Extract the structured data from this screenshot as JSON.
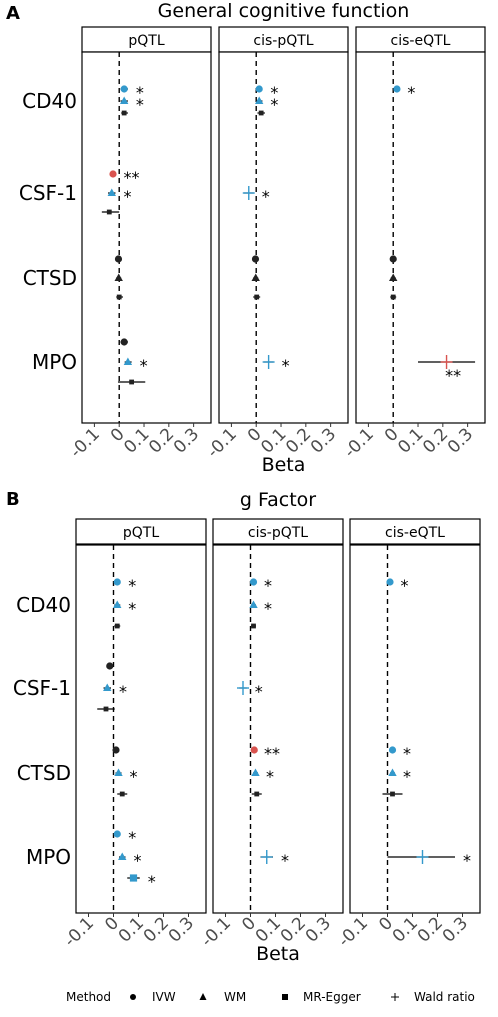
{
  "chart_data": [
    {
      "panel_letter": "A",
      "title": "General cognitive function",
      "type": "forest",
      "xlabel": "Beta",
      "xlim": [
        -0.15,
        0.37
      ],
      "xticks": [
        "-0.1",
        "0",
        "0.1",
        "0.2",
        "0.3"
      ],
      "row_labels": [
        "CD40",
        "CSF-1",
        "CTSD",
        "MPO"
      ],
      "facets": [
        {
          "name": "pQTL",
          "points": [
            {
              "protein": "CD40",
              "method": "IVW",
              "beta": 0.02,
              "lo": 0.005,
              "hi": 0.035,
              "star": "*",
              "color": "#3399cc"
            },
            {
              "protein": "CD40",
              "method": "WM",
              "beta": 0.02,
              "lo": 0.005,
              "hi": 0.035,
              "star": "*",
              "color": "#3399cc"
            },
            {
              "protein": "CD40",
              "method": "MR-Egger",
              "beta": 0.02,
              "lo": 0.008,
              "hi": 0.035,
              "star": "",
              "color": "#222222"
            },
            {
              "protein": "CSF-1",
              "method": "IVW",
              "beta": -0.025,
              "lo": -0.035,
              "hi": -0.015,
              "star": "**",
              "color": "#d9534f"
            },
            {
              "protein": "CSF-1",
              "method": "WM",
              "beta": -0.03,
              "lo": -0.045,
              "hi": -0.015,
              "star": "*",
              "color": "#3399cc"
            },
            {
              "protein": "CSF-1",
              "method": "MR-Egger",
              "beta": -0.04,
              "lo": -0.07,
              "hi": 0.0,
              "star": "",
              "color": "#222222"
            },
            {
              "protein": "CTSD",
              "method": "IVW",
              "beta": -0.003,
              "lo": -0.012,
              "hi": 0.006,
              "star": "",
              "color": "#222222"
            },
            {
              "protein": "CTSD",
              "method": "WM",
              "beta": -0.002,
              "lo": -0.012,
              "hi": 0.008,
              "star": "",
              "color": "#222222"
            },
            {
              "protein": "CTSD",
              "method": "MR-Egger",
              "beta": 0.0,
              "lo": -0.012,
              "hi": 0.015,
              "star": "",
              "color": "#222222"
            },
            {
              "protein": "MPO",
              "method": "IVW",
              "beta": 0.02,
              "lo": 0.005,
              "hi": 0.035,
              "star": "",
              "color": "#222222"
            },
            {
              "protein": "MPO",
              "method": "WM",
              "beta": 0.035,
              "lo": 0.022,
              "hi": 0.05,
              "star": "*",
              "color": "#3399cc"
            },
            {
              "protein": "MPO",
              "method": "MR-Egger",
              "beta": 0.05,
              "lo": -0.005,
              "hi": 0.105,
              "star": "",
              "color": "#222222"
            }
          ]
        },
        {
          "name": "cis-pQTL",
          "points": [
            {
              "protein": "CD40",
              "method": "IVW",
              "beta": 0.012,
              "lo": 0.0,
              "hi": 0.025,
              "star": "*",
              "color": "#3399cc"
            },
            {
              "protein": "CD40",
              "method": "WM",
              "beta": 0.012,
              "lo": 0.0,
              "hi": 0.025,
              "star": "*",
              "color": "#3399cc"
            },
            {
              "protein": "CD40",
              "method": "MR-Egger",
              "beta": 0.02,
              "lo": 0.005,
              "hi": 0.035,
              "star": "",
              "color": "#222222"
            },
            {
              "protein": "CSF-1",
              "method": "Wald ratio",
              "beta": -0.03,
              "lo": -0.05,
              "hi": -0.01,
              "star": "*",
              "color": "#3399cc"
            },
            {
              "protein": "CTSD",
              "method": "IVW",
              "beta": -0.003,
              "lo": -0.012,
              "hi": 0.006,
              "star": "",
              "color": "#222222"
            },
            {
              "protein": "CTSD",
              "method": "WM",
              "beta": -0.002,
              "lo": -0.012,
              "hi": 0.008,
              "star": "",
              "color": "#222222"
            },
            {
              "protein": "CTSD",
              "method": "MR-Egger",
              "beta": 0.002,
              "lo": -0.012,
              "hi": 0.016,
              "star": "",
              "color": "#222222"
            },
            {
              "protein": "MPO",
              "method": "Wald ratio",
              "beta": 0.05,
              "lo": 0.03,
              "hi": 0.07,
              "star": "*",
              "color": "#3399cc"
            }
          ]
        },
        {
          "name": "cis-eQTL",
          "points": [
            {
              "protein": "CD40",
              "method": "IVW",
              "beta": 0.015,
              "lo": 0.005,
              "hi": 0.025,
              "star": "*",
              "color": "#3399cc"
            },
            {
              "protein": "CTSD",
              "method": "IVW",
              "beta": 0.0,
              "lo": -0.01,
              "hi": 0.01,
              "star": "",
              "color": "#222222"
            },
            {
              "protein": "CTSD",
              "method": "WM",
              "beta": 0.0,
              "lo": -0.01,
              "hi": 0.01,
              "star": "",
              "color": "#222222"
            },
            {
              "protein": "CTSD",
              "method": "MR-Egger",
              "beta": 0.0,
              "lo": -0.012,
              "hi": 0.012,
              "star": "",
              "color": "#222222"
            },
            {
              "protein": "MPO",
              "method": "Wald ratio",
              "beta": 0.215,
              "lo": 0.1,
              "hi": 0.33,
              "star": "**",
              "color": "#d9534f"
            }
          ]
        }
      ]
    },
    {
      "panel_letter": "B",
      "title": "g Factor",
      "type": "forest",
      "xlabel": "Beta",
      "xlim": [
        -0.15,
        0.37
      ],
      "xticks": [
        "-0.1",
        "0",
        "0.1",
        "0.2",
        "0.3"
      ],
      "row_labels": [
        "CD40",
        "CSF-1",
        "CTSD",
        "MPO"
      ],
      "facets": [
        {
          "name": "pQTL",
          "points": [
            {
              "protein": "CD40",
              "method": "IVW",
              "beta": 0.015,
              "lo": 0.003,
              "hi": 0.027,
              "star": "*",
              "color": "#3399cc"
            },
            {
              "protein": "CD40",
              "method": "WM",
              "beta": 0.015,
              "lo": 0.003,
              "hi": 0.027,
              "star": "*",
              "color": "#3399cc"
            },
            {
              "protein": "CD40",
              "method": "MR-Egger",
              "beta": 0.015,
              "lo": 0.003,
              "hi": 0.027,
              "star": "",
              "color": "#222222"
            },
            {
              "protein": "CSF-1",
              "method": "IVW",
              "beta": -0.015,
              "lo": -0.025,
              "hi": -0.005,
              "star": "",
              "color": "#222222"
            },
            {
              "protein": "CSF-1",
              "method": "WM",
              "beta": -0.025,
              "lo": -0.04,
              "hi": -0.01,
              "star": "*",
              "color": "#3399cc"
            },
            {
              "protein": "CSF-1",
              "method": "MR-Egger",
              "beta": -0.03,
              "lo": -0.065,
              "hi": 0.005,
              "star": "",
              "color": "#222222"
            },
            {
              "protein": "CTSD",
              "method": "IVW",
              "beta": 0.01,
              "lo": 0.0,
              "hi": 0.02,
              "star": "",
              "color": "#222222"
            },
            {
              "protein": "CTSD",
              "method": "WM",
              "beta": 0.02,
              "lo": 0.008,
              "hi": 0.032,
              "star": "*",
              "color": "#3399cc"
            },
            {
              "protein": "CTSD",
              "method": "MR-Egger",
              "beta": 0.035,
              "lo": 0.015,
              "hi": 0.055,
              "star": "",
              "color": "#222222"
            },
            {
              "protein": "MPO",
              "method": "IVW",
              "beta": 0.015,
              "lo": 0.003,
              "hi": 0.027,
              "star": "*",
              "color": "#3399cc"
            },
            {
              "protein": "MPO",
              "method": "WM",
              "beta": 0.035,
              "lo": 0.022,
              "hi": 0.048,
              "star": "*",
              "color": "#3399cc"
            },
            {
              "protein": "MPO",
              "method": "MR-Egger",
              "beta": 0.08,
              "lo": 0.055,
              "hi": 0.105,
              "star": "*",
              "color": "#3399cc"
            }
          ]
        },
        {
          "name": "cis-pQTL",
          "points": [
            {
              "protein": "CD40",
              "method": "IVW",
              "beta": 0.012,
              "lo": 0.002,
              "hi": 0.022,
              "star": "*",
              "color": "#3399cc"
            },
            {
              "protein": "CD40",
              "method": "WM",
              "beta": 0.012,
              "lo": 0.002,
              "hi": 0.022,
              "star": "*",
              "color": "#3399cc"
            },
            {
              "protein": "CD40",
              "method": "MR-Egger",
              "beta": 0.012,
              "lo": 0.002,
              "hi": 0.022,
              "star": "",
              "color": "#222222"
            },
            {
              "protein": "CSF-1",
              "method": "Wald ratio",
              "beta": -0.03,
              "lo": -0.045,
              "hi": -0.015,
              "star": "*",
              "color": "#3399cc"
            },
            {
              "protein": "CTSD",
              "method": "IVW",
              "beta": 0.015,
              "lo": 0.008,
              "hi": 0.022,
              "star": "**",
              "color": "#d9534f"
            },
            {
              "protein": "CTSD",
              "method": "WM",
              "beta": 0.02,
              "lo": 0.01,
              "hi": 0.03,
              "star": "*",
              "color": "#3399cc"
            },
            {
              "protein": "CTSD",
              "method": "MR-Egger",
              "beta": 0.025,
              "lo": 0.005,
              "hi": 0.045,
              "star": "",
              "color": "#222222"
            },
            {
              "protein": "MPO",
              "method": "Wald ratio",
              "beta": 0.065,
              "lo": 0.04,
              "hi": 0.09,
              "star": "*",
              "color": "#3399cc"
            }
          ]
        },
        {
          "name": "cis-eQTL",
          "points": [
            {
              "protein": "CD40",
              "method": "IVW",
              "beta": 0.01,
              "lo": 0.0,
              "hi": 0.02,
              "star": "*",
              "color": "#3399cc"
            },
            {
              "protein": "CTSD",
              "method": "IVW",
              "beta": 0.02,
              "lo": 0.01,
              "hi": 0.03,
              "star": "*",
              "color": "#3399cc"
            },
            {
              "protein": "CTSD",
              "method": "WM",
              "beta": 0.02,
              "lo": 0.01,
              "hi": 0.03,
              "star": "*",
              "color": "#3399cc"
            },
            {
              "protein": "CTSD",
              "method": "MR-Egger",
              "beta": 0.02,
              "lo": -0.02,
              "hi": 0.06,
              "star": "",
              "color": "#222222"
            },
            {
              "protein": "MPO",
              "method": "Wald ratio",
              "beta": 0.14,
              "lo": 0.0,
              "hi": 0.27,
              "star": "*",
              "color": "#3399cc"
            }
          ]
        }
      ]
    }
  ],
  "legend": {
    "title": "Method",
    "items": [
      {
        "symbol": "circle",
        "label": "IVW"
      },
      {
        "symbol": "triangle",
        "label": "WM"
      },
      {
        "symbol": "square",
        "label": "MR-Egger"
      },
      {
        "symbol": "plus",
        "label": "Wald ratio"
      }
    ]
  }
}
